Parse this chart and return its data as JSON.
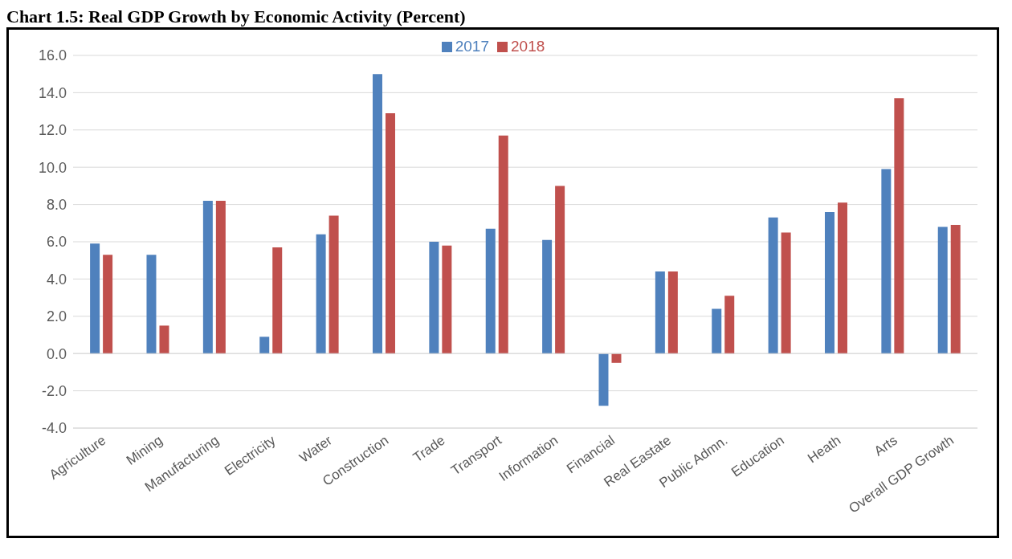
{
  "chart_data": {
    "type": "bar",
    "title": "Chart 1.5: Real GDP Growth by Economic Activity (Percent)",
    "categories": [
      "Agriculture",
      "Mining",
      "Manufacturing",
      "Electricity",
      "Water",
      "Construction",
      "Trade",
      "Transport",
      "Information",
      "Financial",
      "Real Eastate",
      "Public Admn.",
      "Education",
      "Heath",
      "Arts",
      "Overall GDP Growth"
    ],
    "series": [
      {
        "name": "2017",
        "color": "#4f81bd",
        "values": [
          5.9,
          5.3,
          8.2,
          0.9,
          6.4,
          15.0,
          6.0,
          6.7,
          6.1,
          -2.8,
          4.4,
          2.4,
          7.3,
          7.6,
          9.9,
          6.8
        ]
      },
      {
        "name": "2018",
        "color": "#c0504d",
        "values": [
          5.3,
          1.5,
          8.2,
          5.7,
          7.4,
          12.9,
          5.8,
          11.7,
          9.0,
          -0.5,
          4.4,
          3.1,
          6.5,
          8.1,
          13.7,
          6.9
        ]
      }
    ],
    "ylim": [
      -4,
      16
    ],
    "yticks": [
      {
        "value": -4,
        "label": "-4.0"
      },
      {
        "value": -2,
        "label": "-2.0"
      },
      {
        "value": 0,
        "label": "0.0"
      },
      {
        "value": 2,
        "label": "2.0"
      },
      {
        "value": 4,
        "label": "4.0"
      },
      {
        "value": 6,
        "label": "6.0"
      },
      {
        "value": 8,
        "label": "8.0"
      },
      {
        "value": 10,
        "label": "10.0"
      },
      {
        "value": 12,
        "label": "12.0"
      },
      {
        "value": 14,
        "label": "14.0"
      },
      {
        "value": 16,
        "label": "16.0"
      }
    ],
    "grid": "y",
    "legend": "top"
  }
}
